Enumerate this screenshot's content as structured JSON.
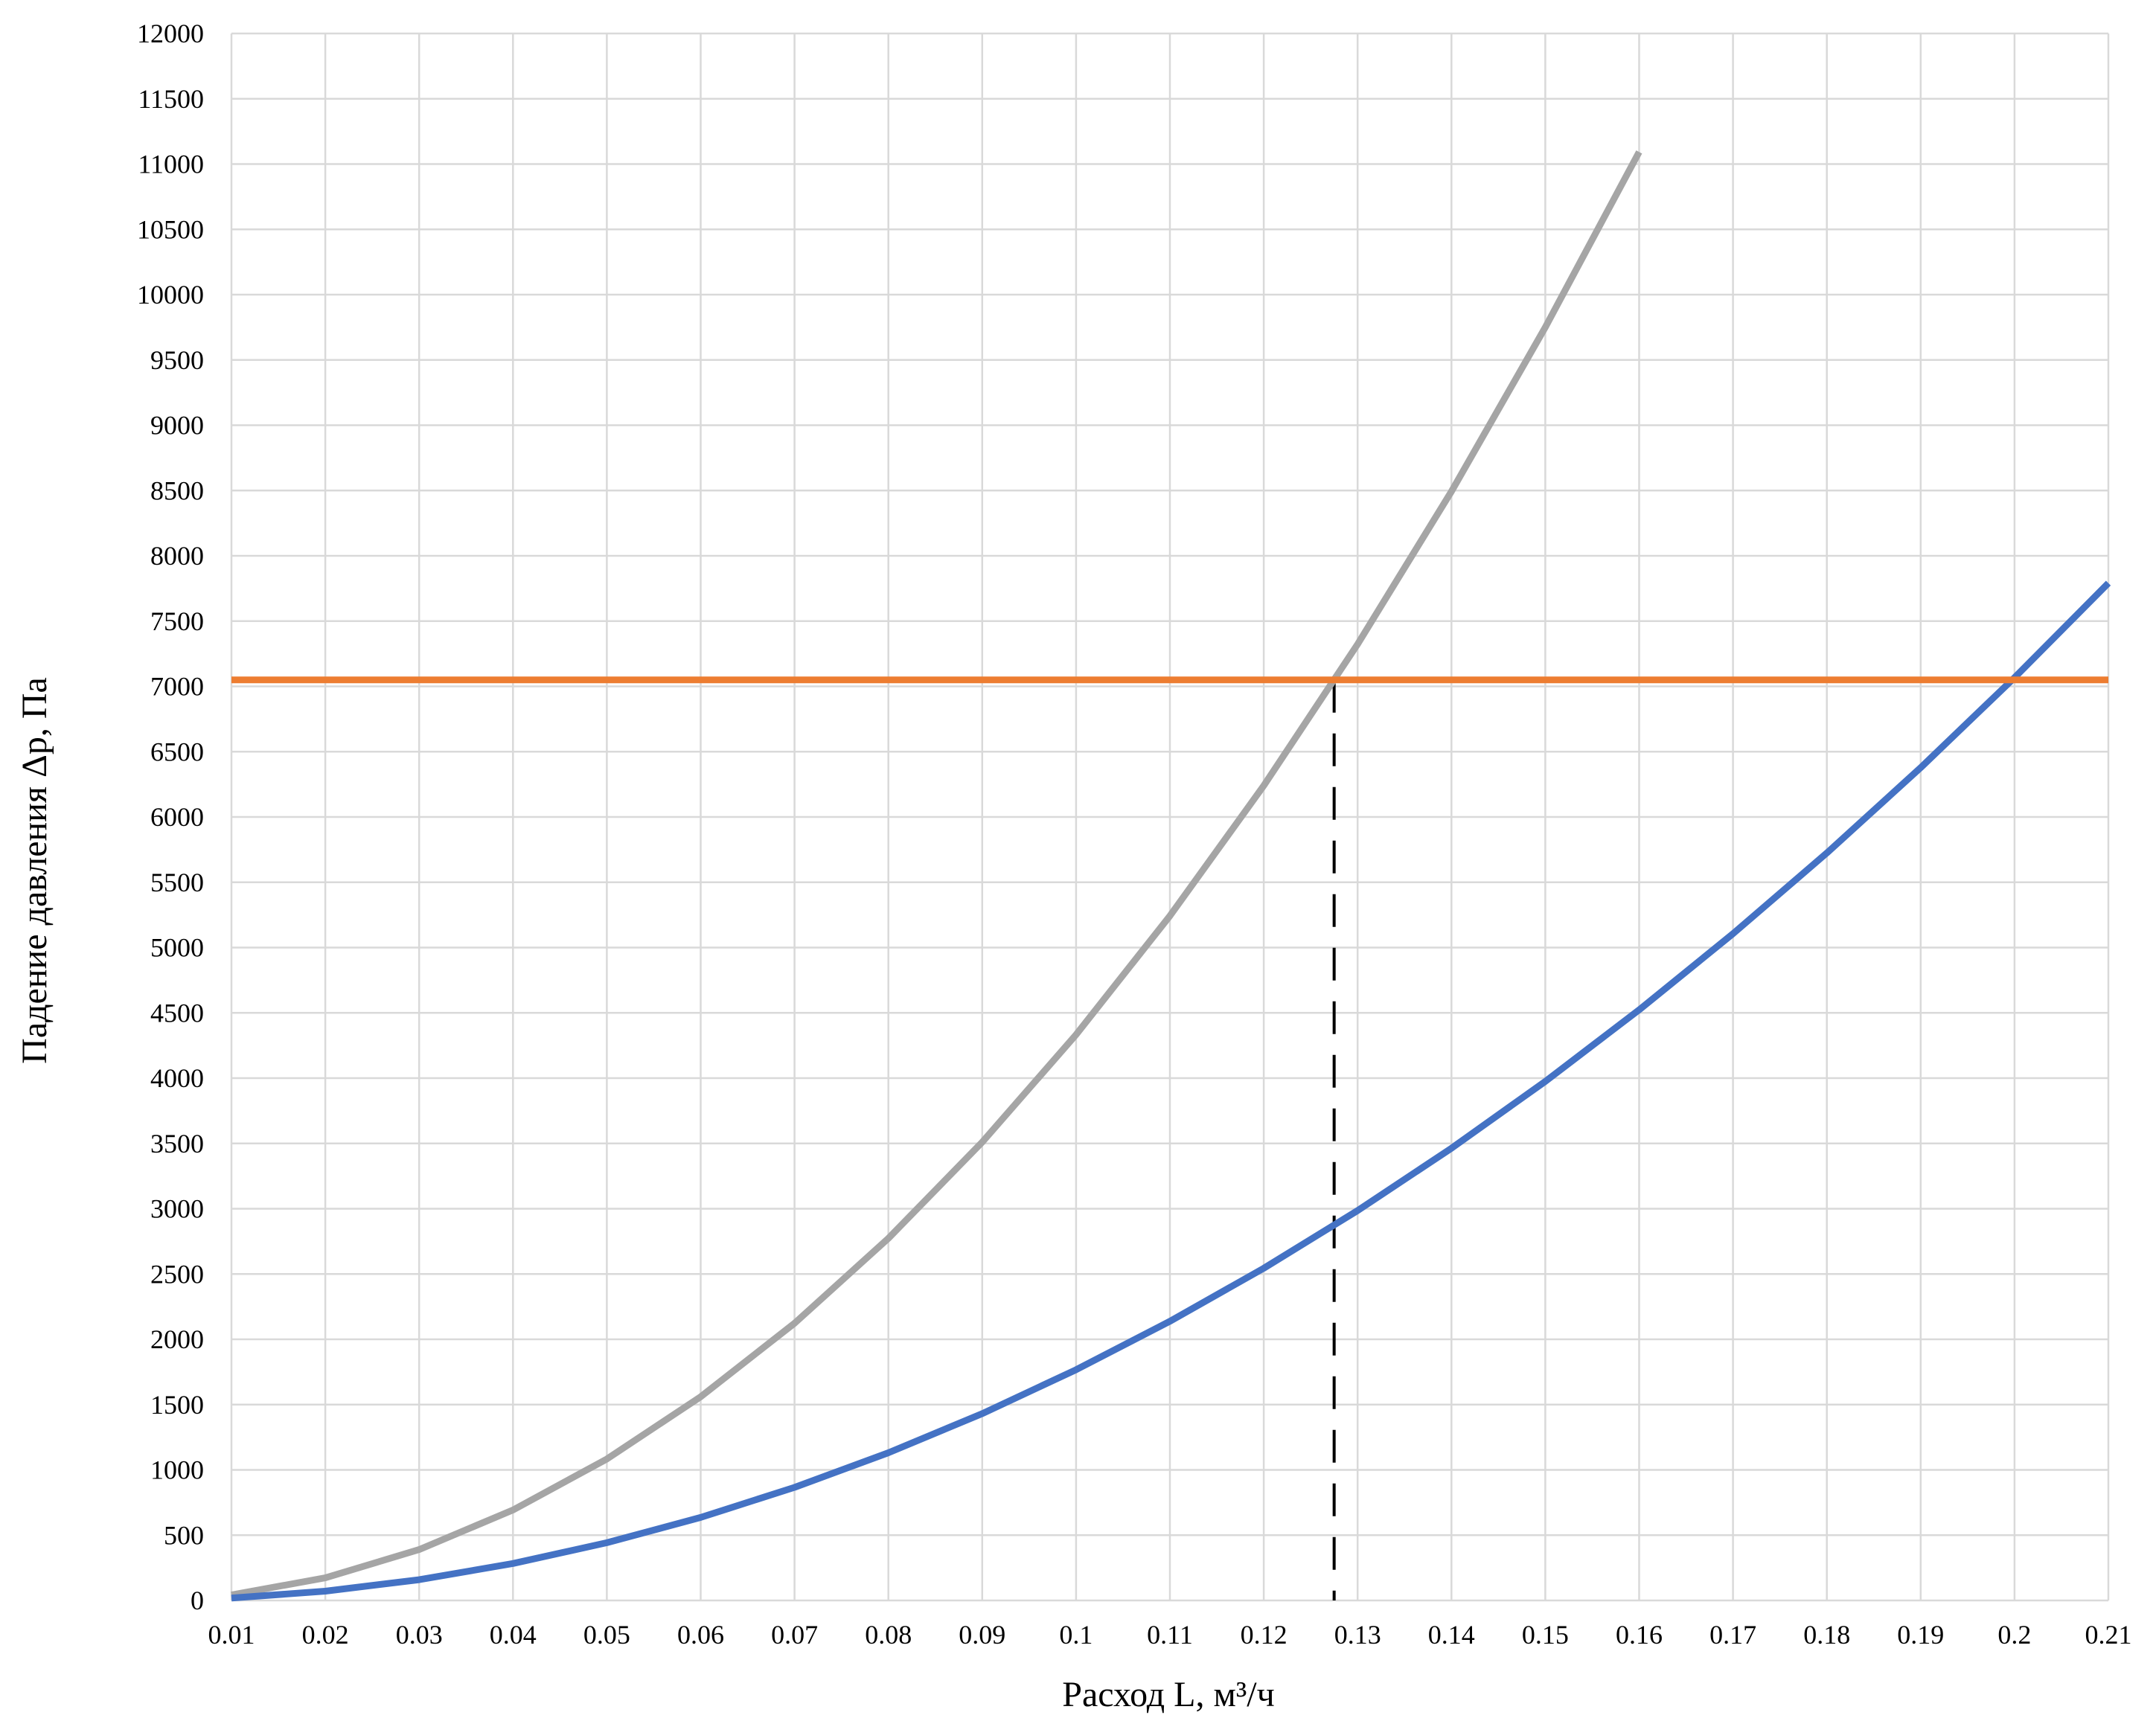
{
  "chart_data": {
    "type": "line",
    "title": "",
    "xlabel": "Расход L, м³/ч",
    "ylabel": "Падение давления Δp, Па",
    "xlim": [
      0.01,
      0.21
    ],
    "ylim": [
      0,
      12000
    ],
    "grid": true,
    "legend": "none",
    "x_ticks": [
      "0.01",
      "0.02",
      "0.03",
      "0.04",
      "0.05",
      "0.06",
      "0.07",
      "0.08",
      "0.09",
      "0.1",
      "0.11",
      "0.12",
      "0.13",
      "0.14",
      "0.15",
      "0.16",
      "0.17",
      "0.18",
      "0.19",
      "0.2",
      "0.21"
    ],
    "y_ticks": [
      "0",
      "500",
      "1000",
      "1500",
      "2000",
      "2500",
      "3000",
      "3500",
      "4000",
      "4500",
      "5000",
      "5500",
      "6000",
      "6500",
      "7000",
      "7500",
      "8000",
      "8500",
      "9000",
      "9500",
      "10000",
      "10500",
      "11000",
      "11500",
      "12000"
    ],
    "series": [
      {
        "color": "#a5a5a5",
        "x": [
          0.01,
          0.02,
          0.03,
          0.04,
          0.05,
          0.06,
          0.07,
          0.08,
          0.09,
          0.1,
          0.11,
          0.12,
          0.13,
          0.14,
          0.15,
          0.16
        ],
        "y": [
          43,
          173,
          390,
          693,
          1083,
          1560,
          2123,
          2773,
          3510,
          4333,
          5243,
          6240,
          7323,
          8493,
          9750,
          11093
        ]
      },
      {
        "color": "#4472c4",
        "x": [
          0.01,
          0.02,
          0.03,
          0.04,
          0.05,
          0.06,
          0.07,
          0.08,
          0.09,
          0.1,
          0.11,
          0.12,
          0.13,
          0.14,
          0.15,
          0.16,
          0.17,
          0.18,
          0.19,
          0.2,
          0.21
        ],
        "y": [
          18,
          71,
          159,
          283,
          442,
          636,
          866,
          1131,
          1431,
          1767,
          2138,
          2544,
          2986,
          3463,
          3975,
          4523,
          5106,
          5724,
          6378,
          7067,
          7791
        ]
      },
      {
        "color": "#ed7d31",
        "x": [
          0.01,
          0.21
        ],
        "y": [
          7050,
          7050
        ]
      }
    ],
    "annotations": [
      {
        "type": "dashed-vertical",
        "color": "#000000",
        "x": 0.1275,
        "y_from": 0,
        "y_to": 7050
      }
    ]
  }
}
